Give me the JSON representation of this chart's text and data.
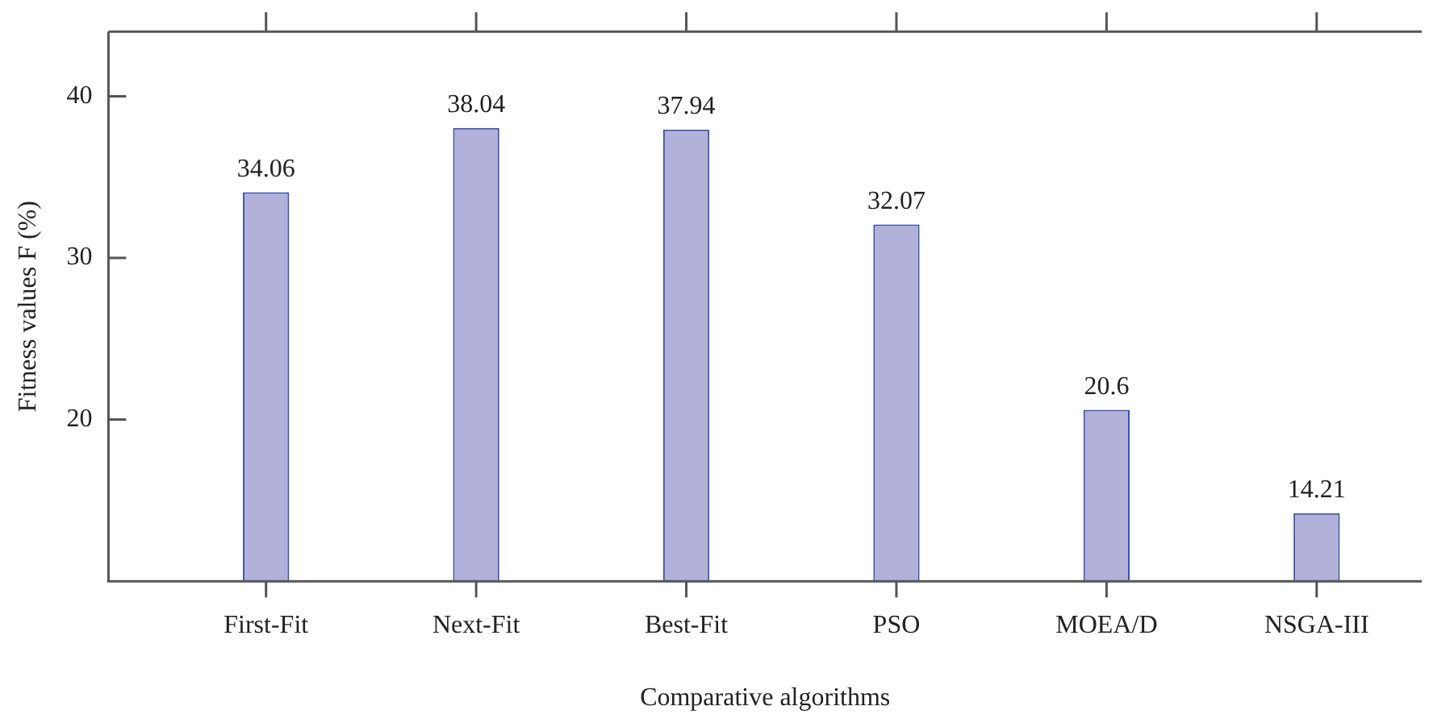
{
  "chart_data": {
    "type": "bar",
    "xlabel": "Comparative algorithms",
    "ylabel": "Fitness values F (%)",
    "categories": [
      "First-Fit",
      "Next-Fit",
      "Best-Fit",
      "PSO",
      "MOEA/D",
      "NSGA-III"
    ],
    "values": [
      34.06,
      38.04,
      37.94,
      32.07,
      20.6,
      14.21
    ],
    "color": "#b1b1d9",
    "ylim": [
      10,
      44
    ],
    "yticks": [
      20,
      30,
      40
    ],
    "grid": false,
    "legend": false,
    "data_labels": true
  }
}
